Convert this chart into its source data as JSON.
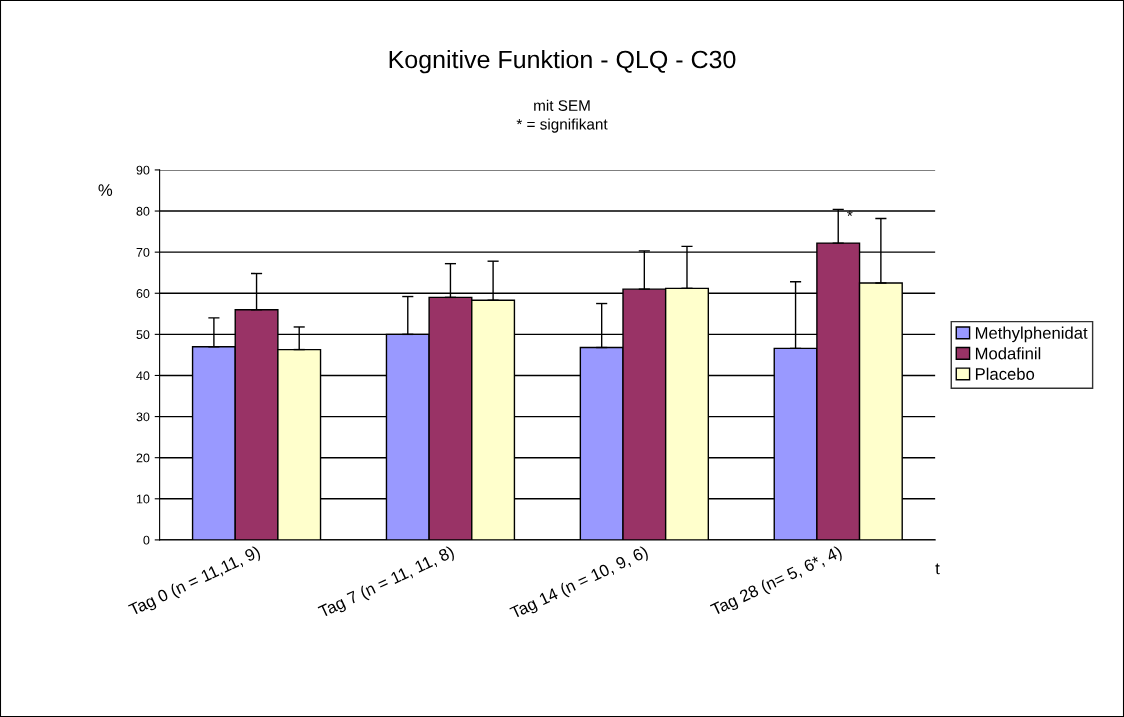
{
  "chart_data": {
    "type": "bar",
    "title": "Kognitive Funktion - QLQ - C30",
    "subtitle": "mit SEM\n* = signifikant",
    "ylabel": "%",
    "xlabel": "t",
    "categories": [
      "Tag 0 (n = 11,11, 9)",
      "Tag 7 (n = 11, 11, 8)",
      "Tag 14 (n = 10, 9, 6)",
      "Tag 28 (n= 5, 6*, 4)"
    ],
    "series": [
      {
        "name": "Methylphenidat",
        "color": "#9999ff",
        "values": [
          47,
          50,
          46.8,
          46.6
        ],
        "errors": [
          [
            47,
            54
          ],
          [
            50,
            59.2
          ],
          [
            46.8,
            57.5
          ],
          [
            46.6,
            62.8
          ]
        ]
      },
      {
        "name": "Modafinil",
        "color": "#993366",
        "values": [
          56,
          59,
          61,
          72.2
        ],
        "errors": [
          [
            56,
            64.8
          ],
          [
            59,
            67.2
          ],
          [
            61,
            70.3
          ],
          [
            72.2,
            80.4
          ]
        ]
      },
      {
        "name": "Placebo",
        "color": "#ffffcc",
        "values": [
          46.3,
          58.3,
          61.2,
          62.5
        ],
        "errors": [
          [
            46.3,
            51.8
          ],
          [
            58.3,
            67.8
          ],
          [
            61.2,
            71.4
          ],
          [
            62.5,
            78.2
          ]
        ]
      }
    ],
    "annotations": [
      {
        "text": "*",
        "x": "Tag 28 (n= 5, 6*, 4)",
        "y": 78.5
      }
    ],
    "ylim": [
      0,
      90
    ],
    "yticks": [
      0,
      10,
      20,
      30,
      40,
      50,
      60,
      70,
      80,
      90
    ],
    "grid": "y",
    "legend": "right"
  }
}
